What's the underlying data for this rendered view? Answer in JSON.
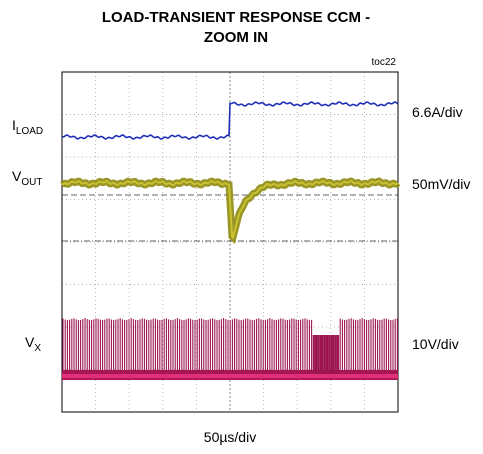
{
  "header": {
    "title": [
      "LOAD-TRANSIENT RESPONSE CCM -",
      "ZOOM IN"
    ],
    "tag": "toc22"
  },
  "traces": [
    {
      "label": {
        "main": "I",
        "sub": "LOAD"
      },
      "scale": "6.6A/div"
    },
    {
      "label": {
        "main": "V",
        "sub": "OUT"
      },
      "scale": "50mV/div"
    },
    {
      "label": {
        "main": "V",
        "sub": "X"
      },
      "scale": "10V/div"
    }
  ],
  "timebase": "50µs/div"
}
